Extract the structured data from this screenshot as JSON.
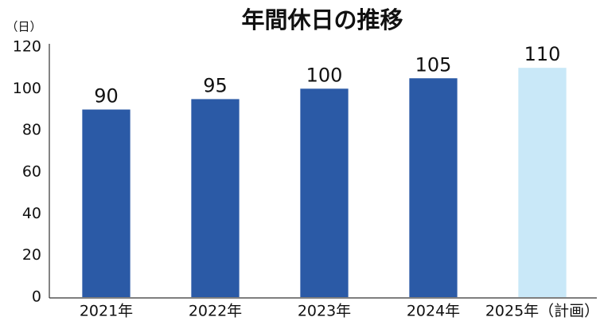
{
  "chart_data": {
    "type": "bar",
    "title": "年間休日の推移",
    "y_label": "（日）",
    "categories": [
      "2021年",
      "2022年",
      "2023年",
      "2024年",
      "2025年（計画）"
    ],
    "values": [
      90,
      95,
      100,
      105,
      110
    ],
    "colors": [
      "#2b5aa6",
      "#2b5aa6",
      "#2b5aa6",
      "#2b5aa6",
      "#c9e8f8"
    ],
    "ylim": [
      0,
      120
    ],
    "yticks": [
      0,
      20,
      40,
      60,
      80,
      100,
      120
    ],
    "grid": false
  }
}
